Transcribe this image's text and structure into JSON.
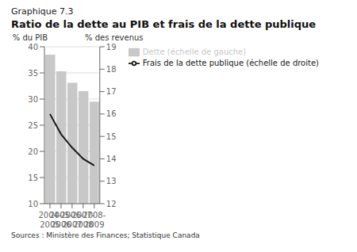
{
  "chart_data": {
    "type": "bar",
    "subtitle": "Graphique 7.3",
    "title": "Ratio de la dette au PIB et frais de la dette publique",
    "categories": [
      "2004-\n2005",
      "2005-\n2006",
      "2006-\n2007",
      "2007-\n2008",
      "2008-\n2009"
    ],
    "series": [
      {
        "name": "Dette (échelle de gauche)",
        "type": "bar",
        "color": "#c8c8c8",
        "values": [
          38.5,
          35.3,
          33.1,
          31.5,
          29.5
        ]
      },
      {
        "name": "Frais de la dette publique (échelle de droite)",
        "type": "line",
        "color": "#1a1a1a",
        "axis": "y2",
        "values": [
          16.0,
          15.1,
          14.5,
          14.0,
          13.7
        ]
      }
    ],
    "ylabel": "% du PIB",
    "y2label": "% des revenus",
    "ylim": [
      10,
      40
    ],
    "yticks": [
      10,
      15,
      20,
      25,
      30,
      35,
      40
    ],
    "y2lim": [
      12,
      19
    ],
    "y2ticks": [
      12,
      13,
      14,
      15,
      16,
      17,
      18,
      19
    ],
    "grid": true,
    "legend": "upper right",
    "source": "Sources : Ministère des Finances; Statistique Canada"
  }
}
